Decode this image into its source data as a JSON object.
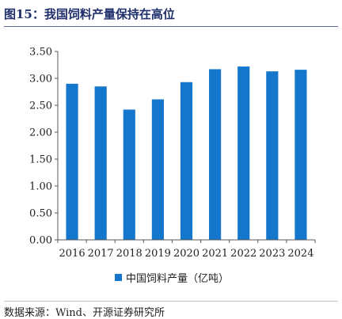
{
  "figure": {
    "title": "图15：我国饲料产量保持在高位",
    "source": "数据来源：Wind、开源证券研究所"
  },
  "colors": {
    "bar": "#1577CC",
    "title": "#1F2F6B",
    "axis": "#595959"
  },
  "chart_data": {
    "type": "bar",
    "categories": [
      "2016",
      "2017",
      "2018",
      "2019",
      "2020",
      "2021",
      "2022",
      "2023",
      "2024"
    ],
    "series": [
      {
        "name": "中国饲料产量（亿吨）",
        "values": [
          2.9,
          2.85,
          2.42,
          2.61,
          2.93,
          3.17,
          3.22,
          3.13,
          3.16
        ]
      }
    ],
    "y_ticks": [
      "0.00",
      "0.50",
      "1.00",
      "1.50",
      "2.00",
      "2.50",
      "3.00",
      "3.50"
    ],
    "ylim": [
      0,
      3.5
    ],
    "legend_position": "bottom",
    "grid": false
  }
}
